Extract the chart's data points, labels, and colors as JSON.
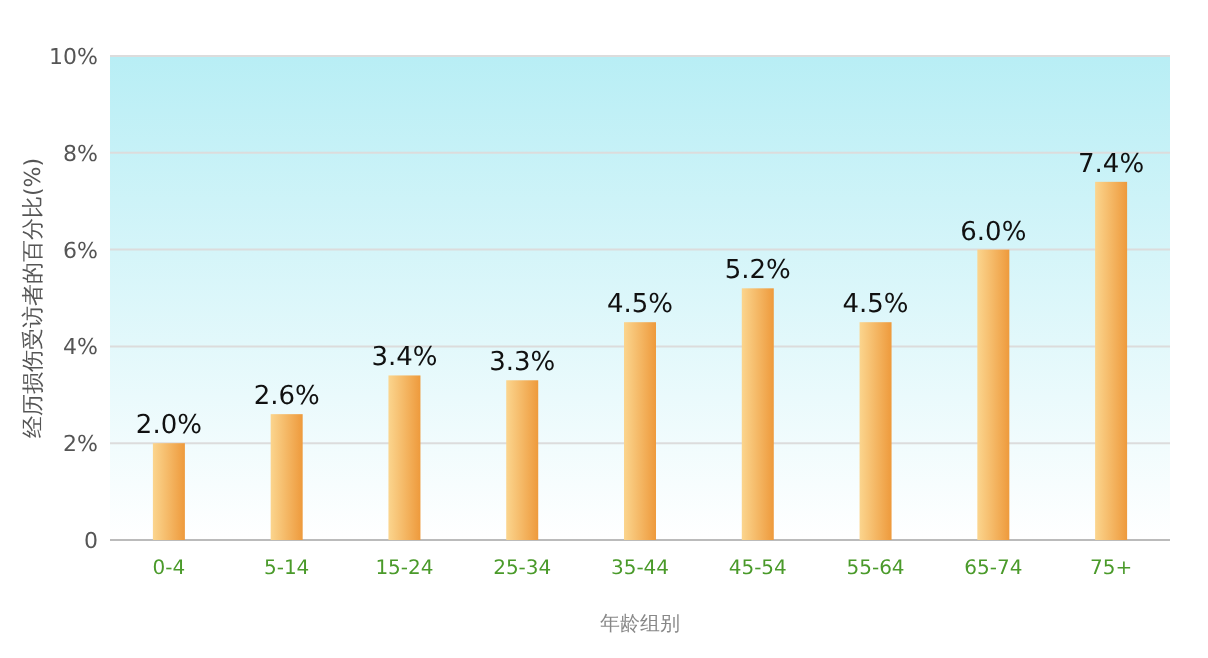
{
  "chart_data": {
    "type": "bar",
    "xlabel": "年龄组别",
    "ylabel": "经历损伤受访者的百分比(%)",
    "categories": [
      "0-4",
      "5-14",
      "15-24",
      "25-34",
      "35-44",
      "45-54",
      "55-64",
      "65-74",
      "75+"
    ],
    "values": [
      2.0,
      2.6,
      3.4,
      3.3,
      4.5,
      5.2,
      4.5,
      6.0,
      7.4
    ],
    "value_labels": [
      "2.0%",
      "2.6%",
      "3.4%",
      "3.3%",
      "4.5%",
      "5.2%",
      "4.5%",
      "6.0%",
      "7.4%"
    ],
    "color": "#ee9a3c",
    "ylim": [
      0,
      10
    ],
    "yticks": [
      {
        "value": 0,
        "label": "0"
      },
      {
        "value": 2,
        "label": "2%"
      },
      {
        "value": 4,
        "label": "4%"
      },
      {
        "value": 6,
        "label": "6%"
      },
      {
        "value": 8,
        "label": "8%"
      },
      {
        "value": 10,
        "label": "10%"
      }
    ],
    "grid": "y"
  }
}
